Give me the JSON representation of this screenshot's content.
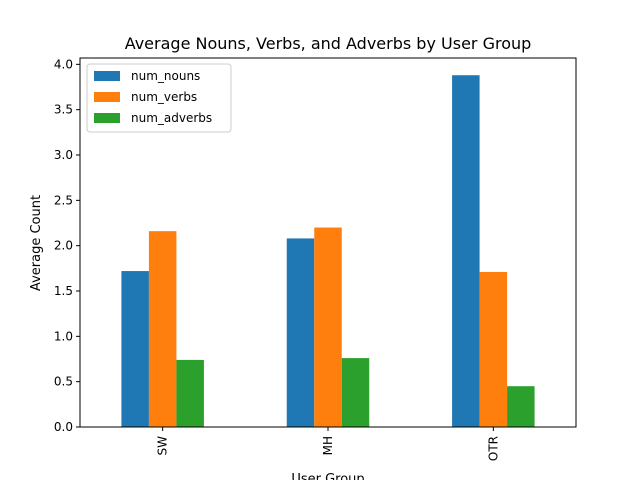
{
  "chart_data": {
    "type": "bar",
    "title": "Average Nouns, Verbs, and Adverbs by User Group",
    "xlabel": "User Group",
    "ylabel": "Average Count",
    "categories": [
      "SW",
      "MH",
      "OTR"
    ],
    "series": [
      {
        "name": "num_nouns",
        "color": "#1f77b4",
        "values": [
          1.72,
          2.08,
          3.88
        ]
      },
      {
        "name": "num_verbs",
        "color": "#ff7f0e",
        "values": [
          2.16,
          2.2,
          1.71
        ]
      },
      {
        "name": "num_adverbs",
        "color": "#2ca02c",
        "values": [
          0.74,
          0.76,
          0.45
        ]
      }
    ],
    "ylim": [
      0,
      4.07
    ],
    "yticks": [
      "0.0",
      "0.5",
      "1.0",
      "1.5",
      "2.0",
      "2.5",
      "3.0",
      "3.5",
      "4.0"
    ],
    "grid": false,
    "legend_position": "top-left"
  }
}
